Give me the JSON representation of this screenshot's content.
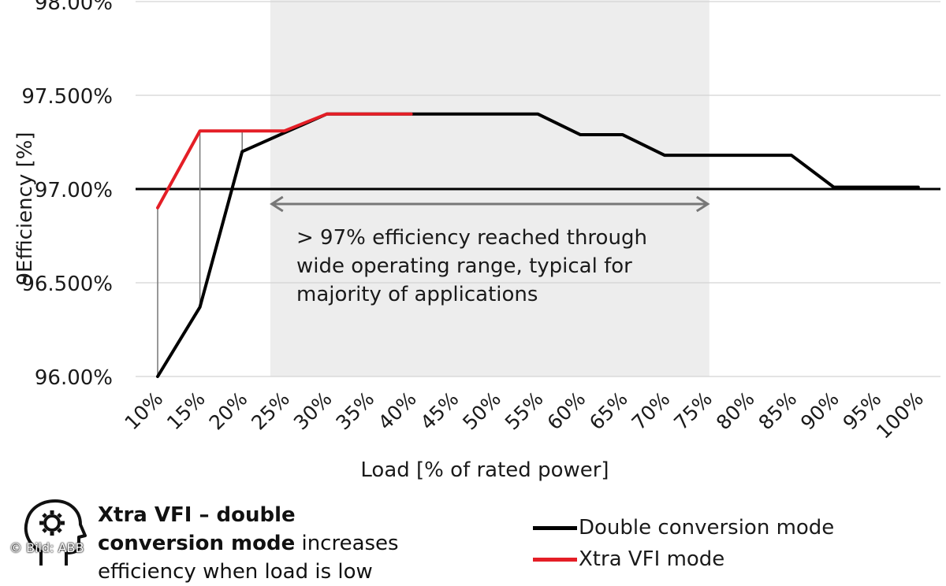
{
  "chart_data": {
    "type": "line",
    "xlabel": "Load [% of rated power]",
    "ylabel": "Efficiency [%]",
    "ylabel_prefix": "9",
    "categories": [
      "10%",
      "15%",
      "20%",
      "25%",
      "30%",
      "35%",
      "40%",
      "45%",
      "50%",
      "55%",
      "60%",
      "65%",
      "70%",
      "75%",
      "80%",
      "85%",
      "90%",
      "95%",
      "100%"
    ],
    "y_ticks": [
      {
        "value": 96.0,
        "label": "96.00%"
      },
      {
        "value": 96.5,
        "label": "96.500%"
      },
      {
        "value": 97.0,
        "label": "97.00%"
      },
      {
        "value": 97.5,
        "label": "97.500%"
      },
      {
        "value": 98.0,
        "label": "98.00%"
      }
    ],
    "ylim": [
      96.0,
      98.0
    ],
    "grid": true,
    "reference_line": 97.0,
    "series": [
      {
        "name": "Double conversion mode",
        "color": "#000000",
        "values": [
          96.0,
          96.37,
          97.2,
          97.3,
          97.4,
          97.4,
          97.4,
          97.4,
          97.4,
          97.4,
          97.29,
          97.29,
          97.18,
          97.18,
          97.18,
          97.18,
          97.01,
          97.01,
          97.01
        ]
      },
      {
        "name": "Xtra VFI mode",
        "color": "#e41e26",
        "values": [
          96.9,
          97.31,
          97.31,
          97.31,
          97.4,
          97.4,
          97.4,
          null,
          null,
          null,
          null,
          null,
          null,
          null,
          null,
          null,
          null,
          null,
          null
        ]
      }
    ],
    "highlight_band": {
      "from_category": "25%",
      "to_category": "75%"
    },
    "annotation": "> 97% efficiency reached through wide operating range, typical for majority of applications",
    "annotation_lines": [
      "> 97% efficiency reached through",
      "wide operating range, typical for",
      "majority of applications"
    ]
  },
  "note": {
    "bold": "Xtra VFI – double conversion mode",
    "bold_line1": "Xtra VFI – double",
    "bold_line2": "conversion mode",
    "rest": " increases",
    "line3": "efficiency when load is low"
  },
  "icons": {
    "head": "head-gear-icon"
  },
  "credit": "© Bild: ABB"
}
